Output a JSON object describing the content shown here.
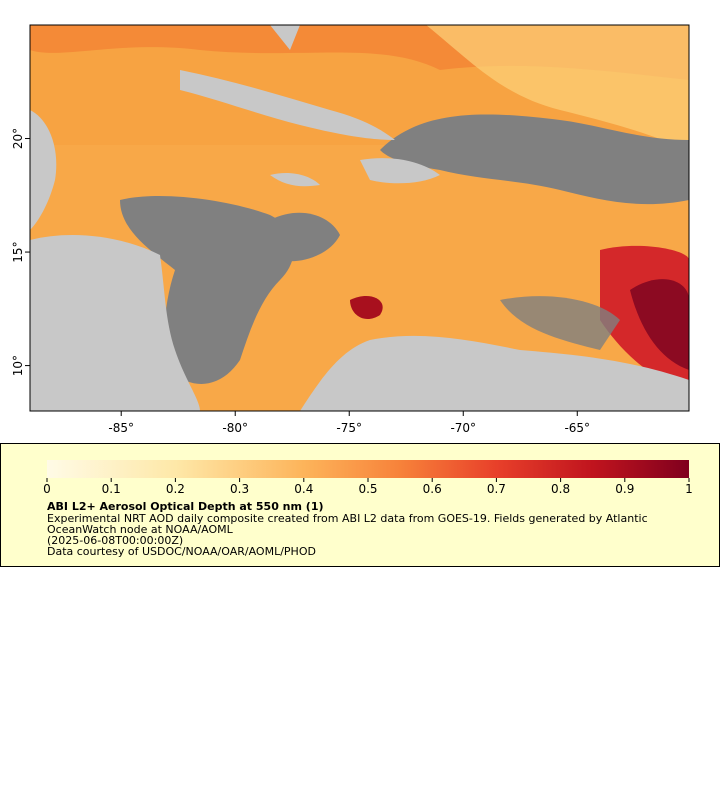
{
  "map": {
    "xlim": [
      -89,
      -60.1
    ],
    "ylim": [
      8,
      25
    ],
    "xticks": [
      {
        "value": -85,
        "label": "-85°"
      },
      {
        "value": -80,
        "label": "-80°"
      },
      {
        "value": -75,
        "label": "-75°"
      },
      {
        "value": -70,
        "label": "-70°"
      },
      {
        "value": -65,
        "label": "-65°"
      }
    ],
    "yticks": [
      {
        "value": 10,
        "label": "10°"
      },
      {
        "value": 15,
        "label": "15°"
      },
      {
        "value": 20,
        "label": "20°"
      }
    ]
  },
  "colorbar": {
    "lim": [
      0,
      1
    ],
    "ticks": [
      0,
      0.1,
      0.2,
      0.3,
      0.4,
      0.5,
      0.6,
      0.7,
      0.8,
      0.9,
      1
    ]
  },
  "legend": {
    "title": "ABI L2+ Aerosol Optical Depth at 550 nm (1)",
    "lines": [
      "Experimental NRT AOD daily composite created from ABI L2 data from GOES-19. Fields generated by Atlantic",
      "OceanWatch node at NOAA/AOML",
      "(2025-06-08T00:00:00Z)",
      "Data courtesy of USDOC/NOAA/OAR/AOML/PHOD"
    ]
  }
}
